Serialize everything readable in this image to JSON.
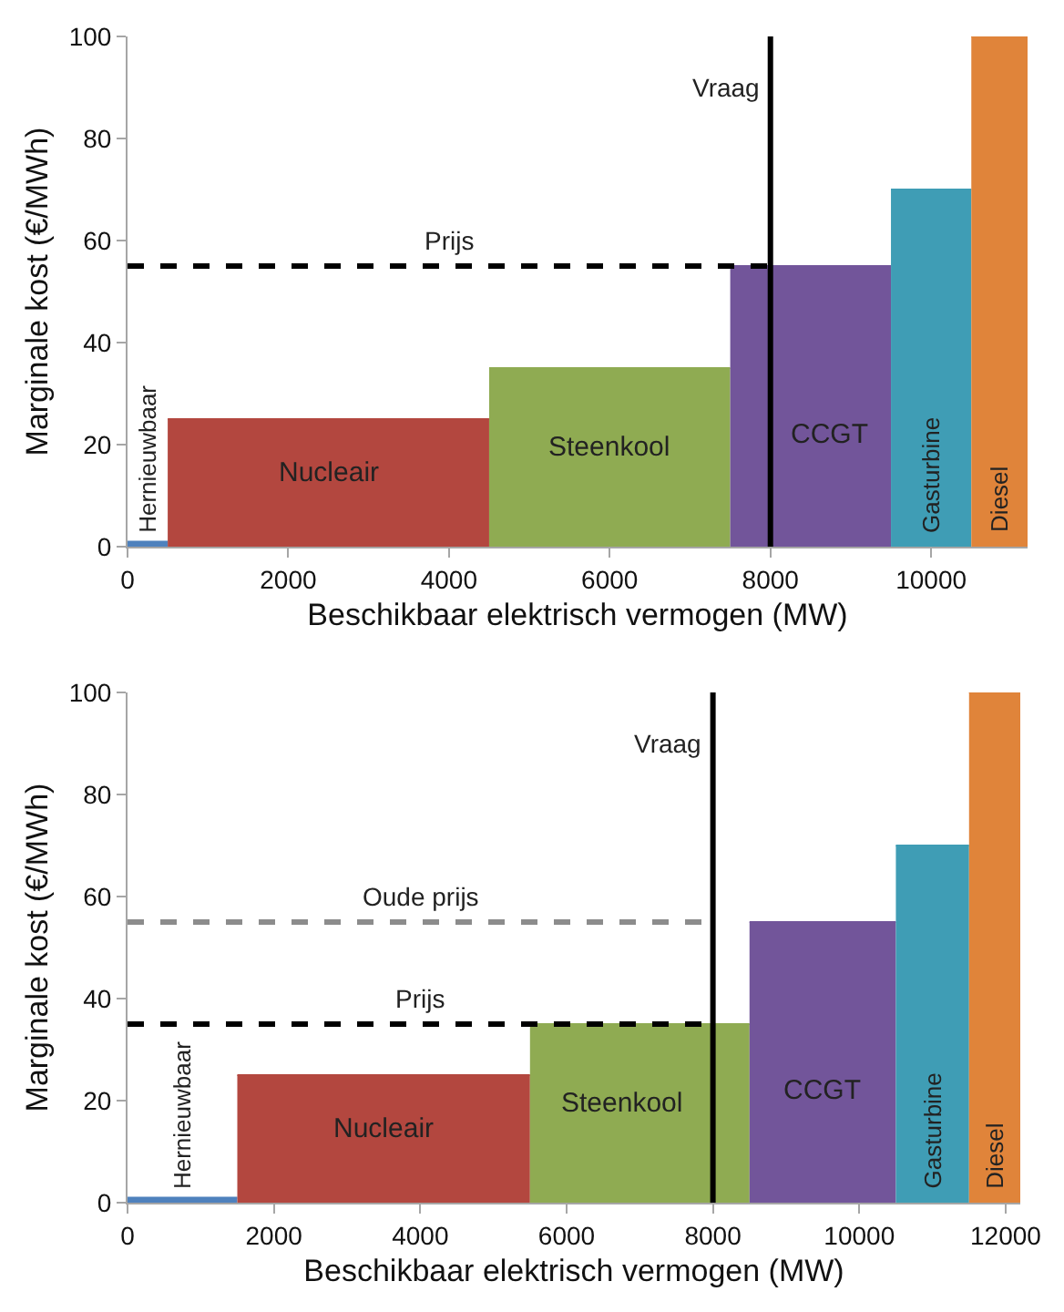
{
  "chart_data": [
    {
      "type": "area",
      "xlabel": "Beschikbaar elektrisch vermogen (MW)",
      "ylabel": "Marginale kost (€/MWh)",
      "xlim": [
        0,
        11200
      ],
      "xticks": [
        0,
        2000,
        4000,
        6000,
        8000,
        10000
      ],
      "ylim": [
        0,
        100
      ],
      "yticks": [
        0,
        20,
        40,
        60,
        80,
        100
      ],
      "grid": false,
      "series": [
        {
          "name": "Hernieuwbaar",
          "color": "#4f81bd",
          "x": [
            0,
            500
          ],
          "values": [
            1,
            1
          ]
        },
        {
          "name": "Nucleair",
          "color": "#b3473f",
          "x": [
            500,
            4500
          ],
          "values": [
            25,
            25
          ]
        },
        {
          "name": "Steenkool",
          "color": "#8fab52",
          "x": [
            4500,
            7500
          ],
          "values": [
            35,
            35
          ]
        },
        {
          "name": "CCGT",
          "color": "#72559a",
          "x": [
            7500,
            9500
          ],
          "values": [
            55,
            55
          ]
        },
        {
          "name": "Gasturbine",
          "color": "#3f9db5",
          "x": [
            9500,
            10500
          ],
          "values": [
            70,
            70
          ]
        },
        {
          "name": "Diesel",
          "color": "#e0843a",
          "x": [
            10500,
            11200
          ],
          "values": [
            100,
            100
          ]
        },
        {
          "name": "Prijs",
          "type": "line",
          "line_style": "dashed",
          "color": "#000000",
          "x": [
            0,
            8000
          ],
          "values": [
            55,
            55
          ]
        }
      ],
      "ref_lines": [
        {
          "axis": "x",
          "value": 8000,
          "label": "Vraag",
          "color": "#000000",
          "line_style": "solid"
        }
      ]
    },
    {
      "type": "area",
      "xlabel": "Beschikbaar elektrisch vermogen (MW)",
      "ylabel": "Marginale kost (€/MWh)",
      "xlim": [
        0,
        12200
      ],
      "xticks": [
        0,
        2000,
        4000,
        6000,
        8000,
        10000,
        12000
      ],
      "ylim": [
        0,
        100
      ],
      "yticks": [
        0,
        20,
        40,
        60,
        80,
        100
      ],
      "grid": false,
      "series": [
        {
          "name": "Hernieuwbaar",
          "color": "#4f81bd",
          "x": [
            0,
            1500
          ],
          "values": [
            1,
            1
          ]
        },
        {
          "name": "Nucleair",
          "color": "#b3473f",
          "x": [
            1500,
            5500
          ],
          "values": [
            25,
            25
          ]
        },
        {
          "name": "Steenkool",
          "color": "#8fab52",
          "x": [
            5500,
            8500
          ],
          "values": [
            35,
            35
          ]
        },
        {
          "name": "CCGT",
          "color": "#72559a",
          "x": [
            8500,
            10500
          ],
          "values": [
            55,
            55
          ]
        },
        {
          "name": "Gasturbine",
          "color": "#3f9db5",
          "x": [
            10500,
            11500
          ],
          "values": [
            70,
            70
          ]
        },
        {
          "name": "Diesel",
          "color": "#e0843a",
          "x": [
            11500,
            12200
          ],
          "values": [
            100,
            100
          ]
        },
        {
          "name": "Oude prijs",
          "type": "line",
          "line_style": "dashed",
          "color": "#8c8c8c",
          "x": [
            0,
            8000
          ],
          "values": [
            55,
            55
          ]
        },
        {
          "name": "Prijs",
          "type": "line",
          "line_style": "dashed",
          "color": "#000000",
          "x": [
            0,
            8000
          ],
          "values": [
            35,
            35
          ]
        }
      ],
      "ref_lines": [
        {
          "axis": "x",
          "value": 8000,
          "label": "Vraag",
          "color": "#000000",
          "line_style": "solid"
        }
      ]
    }
  ]
}
